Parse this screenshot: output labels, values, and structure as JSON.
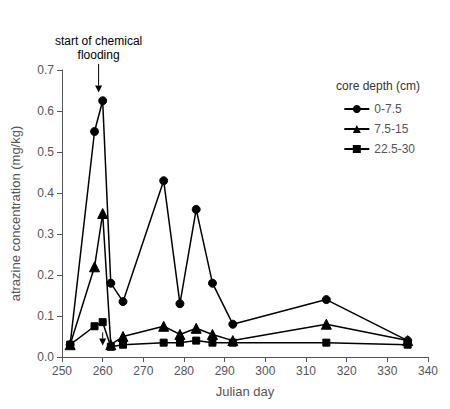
{
  "chart_data": {
    "type": "line",
    "xlabel": "Julian day",
    "ylabel": "atrazine concentration (mg/kg)",
    "x": [
      252,
      258,
      260,
      262,
      265,
      275,
      279,
      283,
      287,
      292,
      315,
      335
    ],
    "series": [
      {
        "name": "0-7.5",
        "marker": "circle",
        "values": [
          0.03,
          0.55,
          0.625,
          0.18,
          0.135,
          0.43,
          0.13,
          0.36,
          0.18,
          0.08,
          0.14,
          0.04
        ]
      },
      {
        "name": "7.5-15",
        "marker": "triangle",
        "values": [
          0.03,
          0.22,
          0.35,
          0.03,
          0.05,
          0.075,
          0.055,
          0.07,
          0.055,
          0.04,
          0.08,
          0.04
        ]
      },
      {
        "name": "22.5-30",
        "marker": "square",
        "values": [
          0.03,
          0.075,
          0.085,
          0.025,
          0.03,
          0.035,
          0.035,
          0.04,
          0.035,
          0.035,
          0.035,
          0.03
        ]
      }
    ],
    "color": "black",
    "xlim": [
      250,
      340
    ],
    "xticks": [
      250,
      260,
      270,
      280,
      290,
      300,
      310,
      320,
      330,
      340
    ],
    "ylim": [
      0.0,
      0.7
    ],
    "yticks": [
      {
        "value": 0.0,
        "label": "0.0"
      },
      0.1,
      0.2,
      0.3,
      0.4,
      0.5,
      0.6,
      0.7
    ],
    "legend_title": "core depth (cm)",
    "legend": "upper right",
    "grid": false,
    "annotations": [
      {
        "text": "start of chemical\nflooding",
        "x": 259,
        "y": 0.645
      },
      {
        "x": 260,
        "y": 0.028,
        "y_from": 0.06
      }
    ]
  }
}
